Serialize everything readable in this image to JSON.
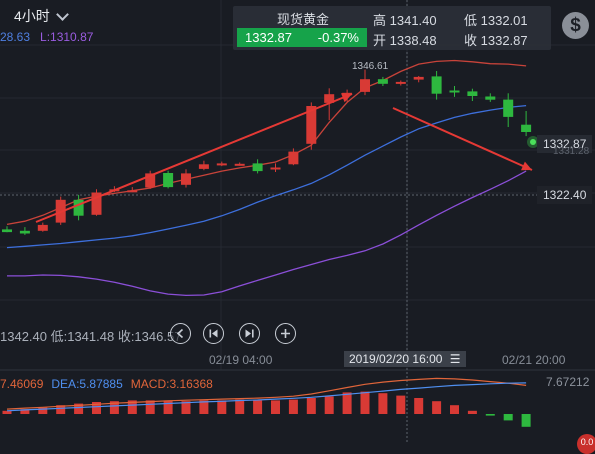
{
  "header": {
    "timeframe": "4小时",
    "ma_labels": [
      {
        "text": "28.63",
        "color": "#4f7fe0"
      },
      {
        "text": "L:1310.87",
        "color": "#9a5ce0"
      }
    ]
  },
  "quote": {
    "name": "现货黄金",
    "last": "1332.87",
    "change_pct": "-0.37%",
    "high_label": "高",
    "high": "1341.40",
    "low_label": "低",
    "low": "1332.01",
    "open_label": "开",
    "open": "1338.48",
    "close_label": "收",
    "close": "1332.87",
    "price_color": "#16a34a",
    "currency_icon": "dollar-icon"
  },
  "chart": {
    "peak_label": "1346.61",
    "current_price_label": "1332.87",
    "hidden_price_label": "1331.28",
    "crosshair_price_label": "1322.40",
    "ohlc_text": "1342.40 低:1341.48 收:1346.57",
    "date_labels": [
      "02/19 04:00",
      "02/21 20:00"
    ],
    "crosshair_date": "2019/02/20 16:00",
    "up_color": "#d83a35",
    "down_color": "#2eb83f"
  },
  "nav": {
    "back_icon": "skip-back-icon",
    "forward_icon": "skip-forward-icon",
    "add_icon": "plus-icon"
  },
  "macd": {
    "dif_label": "7.46069",
    "dea_label": "DEA:5.87885",
    "macd_label": "MACD:3.16368",
    "scale_label": "7.67212",
    "dif_color": "#e0653a",
    "dea_color": "#4f8ff0",
    "macd_color": "#e0653a"
  },
  "chart_data": {
    "type": "candlestick",
    "candles": [
      {
        "o": 1311.5,
        "h": 1312.2,
        "l": 1310.9,
        "c": 1310.9
      },
      {
        "o": 1311.2,
        "h": 1312.0,
        "l": 1310.3,
        "c": 1310.6
      },
      {
        "o": 1311.2,
        "h": 1313.0,
        "l": 1311.0,
        "c": 1312.5
      },
      {
        "o": 1313.0,
        "h": 1318.7,
        "l": 1312.5,
        "c": 1318.0
      },
      {
        "o": 1318.0,
        "h": 1319.1,
        "l": 1313.5,
        "c": 1314.5
      },
      {
        "o": 1314.7,
        "h": 1320.3,
        "l": 1314.5,
        "c": 1319.6
      },
      {
        "o": 1320.0,
        "h": 1321.0,
        "l": 1319.7,
        "c": 1320.3
      },
      {
        "o": 1320.0,
        "h": 1320.8,
        "l": 1319.7,
        "c": 1320.1
      },
      {
        "o": 1320.7,
        "h": 1324.4,
        "l": 1320.4,
        "c": 1323.8
      },
      {
        "o": 1323.9,
        "h": 1324.4,
        "l": 1320.5,
        "c": 1320.8
      },
      {
        "o": 1321.3,
        "h": 1324.7,
        "l": 1320.7,
        "c": 1323.8
      },
      {
        "o": 1324.8,
        "h": 1326.6,
        "l": 1324.5,
        "c": 1325.8
      },
      {
        "o": 1325.8,
        "h": 1326.4,
        "l": 1325.4,
        "c": 1326.0
      },
      {
        "o": 1325.8,
        "h": 1326.2,
        "l": 1325.5,
        "c": 1325.9
      },
      {
        "o": 1326.0,
        "h": 1326.9,
        "l": 1323.8,
        "c": 1324.3
      },
      {
        "o": 1324.9,
        "h": 1326.0,
        "l": 1324.1,
        "c": 1325.1
      },
      {
        "o": 1325.8,
        "h": 1329.3,
        "l": 1325.6,
        "c": 1328.6
      },
      {
        "o": 1330.3,
        "h": 1339.4,
        "l": 1329.0,
        "c": 1338.6
      },
      {
        "o": 1339.3,
        "h": 1342.5,
        "l": 1335.5,
        "c": 1341.2
      },
      {
        "o": 1341.3,
        "h": 1342.2,
        "l": 1339.6,
        "c": 1341.5
      },
      {
        "o": 1341.7,
        "h": 1346.6,
        "l": 1341.0,
        "c": 1344.5
      },
      {
        "o": 1344.5,
        "h": 1345.0,
        "l": 1343.0,
        "c": 1343.5
      },
      {
        "o": 1343.6,
        "h": 1344.2,
        "l": 1343.1,
        "c": 1343.9
      },
      {
        "o": 1344.4,
        "h": 1345.2,
        "l": 1343.8,
        "c": 1345.0
      },
      {
        "o": 1345.1,
        "h": 1346.3,
        "l": 1340.0,
        "c": 1341.3
      },
      {
        "o": 1342.0,
        "h": 1343.0,
        "l": 1340.6,
        "c": 1341.8
      },
      {
        "o": 1341.8,
        "h": 1342.4,
        "l": 1339.7,
        "c": 1340.8
      },
      {
        "o": 1340.7,
        "h": 1341.4,
        "l": 1339.5,
        "c": 1340.0
      },
      {
        "o": 1340.0,
        "h": 1341.4,
        "l": 1334.0,
        "c": 1336.2
      },
      {
        "o": 1334.5,
        "h": 1337.5,
        "l": 1332.0,
        "c": 1332.9
      }
    ],
    "ma_fast": [
      1312.6,
      1313.3,
      1314.6,
      1316.3,
      1318.0,
      1318.8,
      1319.4,
      1320.0,
      1320.6,
      1321.6,
      1322.5,
      1323.4,
      1324.3,
      1325.0,
      1325.6,
      1326.3,
      1327.9,
      1330.0,
      1335.0,
      1339.4,
      1342.6,
      1344.2,
      1346.2,
      1347.8,
      1348.4,
      1348.6,
      1348.3,
      1347.9,
      1347.8,
      1347.4
    ],
    "ma_mid": [
      1307.5,
      1307.8,
      1308.1,
      1308.4,
      1308.8,
      1309.2,
      1309.6,
      1310.1,
      1310.8,
      1311.6,
      1312.4,
      1313.3,
      1314.5,
      1315.9,
      1317.5,
      1318.9,
      1320.2,
      1321.6,
      1323.5,
      1325.6,
      1327.8,
      1329.8,
      1331.8,
      1333.6,
      1334.9,
      1336.1,
      1337.0,
      1337.7,
      1338.3,
      1338.7
    ],
    "ma_slow": [
      1301.3,
      1301.3,
      1301.5,
      1301.4,
      1301.1,
      1300.6,
      1299.9,
      1299.0,
      1298.0,
      1297.3,
      1297.0,
      1297.1,
      1297.8,
      1299.1,
      1300.3,
      1301.5,
      1302.7,
      1303.8,
      1304.9,
      1305.8,
      1306.8,
      1308.3,
      1310.3,
      1312.5,
      1314.6,
      1316.6,
      1318.5,
      1320.3,
      1322.2,
      1324.3
    ],
    "macd_hist": [
      0.2,
      0.3,
      0.4,
      0.55,
      0.65,
      0.75,
      0.8,
      0.85,
      0.85,
      0.85,
      0.8,
      0.85,
      0.85,
      0.9,
      0.85,
      0.85,
      0.9,
      1.0,
      1.1,
      1.35,
      1.4,
      1.3,
      1.15,
      1.0,
      0.8,
      0.55,
      0.2,
      -0.1,
      -0.4,
      -0.8
    ],
    "macd_dif": [
      0.9,
      1.1,
      1.25,
      1.45,
      1.6,
      1.8,
      2.0,
      2.15,
      2.3,
      2.45,
      2.55,
      2.65,
      2.75,
      2.85,
      2.95,
      3.1,
      3.3,
      3.7,
      4.3,
      4.9,
      5.5,
      5.9,
      6.2,
      6.4,
      6.6,
      6.5,
      6.3,
      6.0,
      5.7,
      5.3
    ],
    "macd_dea": [
      0.6,
      0.75,
      0.9,
      1.05,
      1.2,
      1.35,
      1.5,
      1.65,
      1.8,
      1.95,
      2.1,
      2.25,
      2.35,
      2.5,
      2.6,
      2.75,
      2.9,
      3.1,
      3.35,
      3.65,
      3.95,
      4.25,
      4.55,
      4.8,
      5.05,
      5.3,
      5.45,
      5.6,
      5.7,
      5.75
    ]
  }
}
